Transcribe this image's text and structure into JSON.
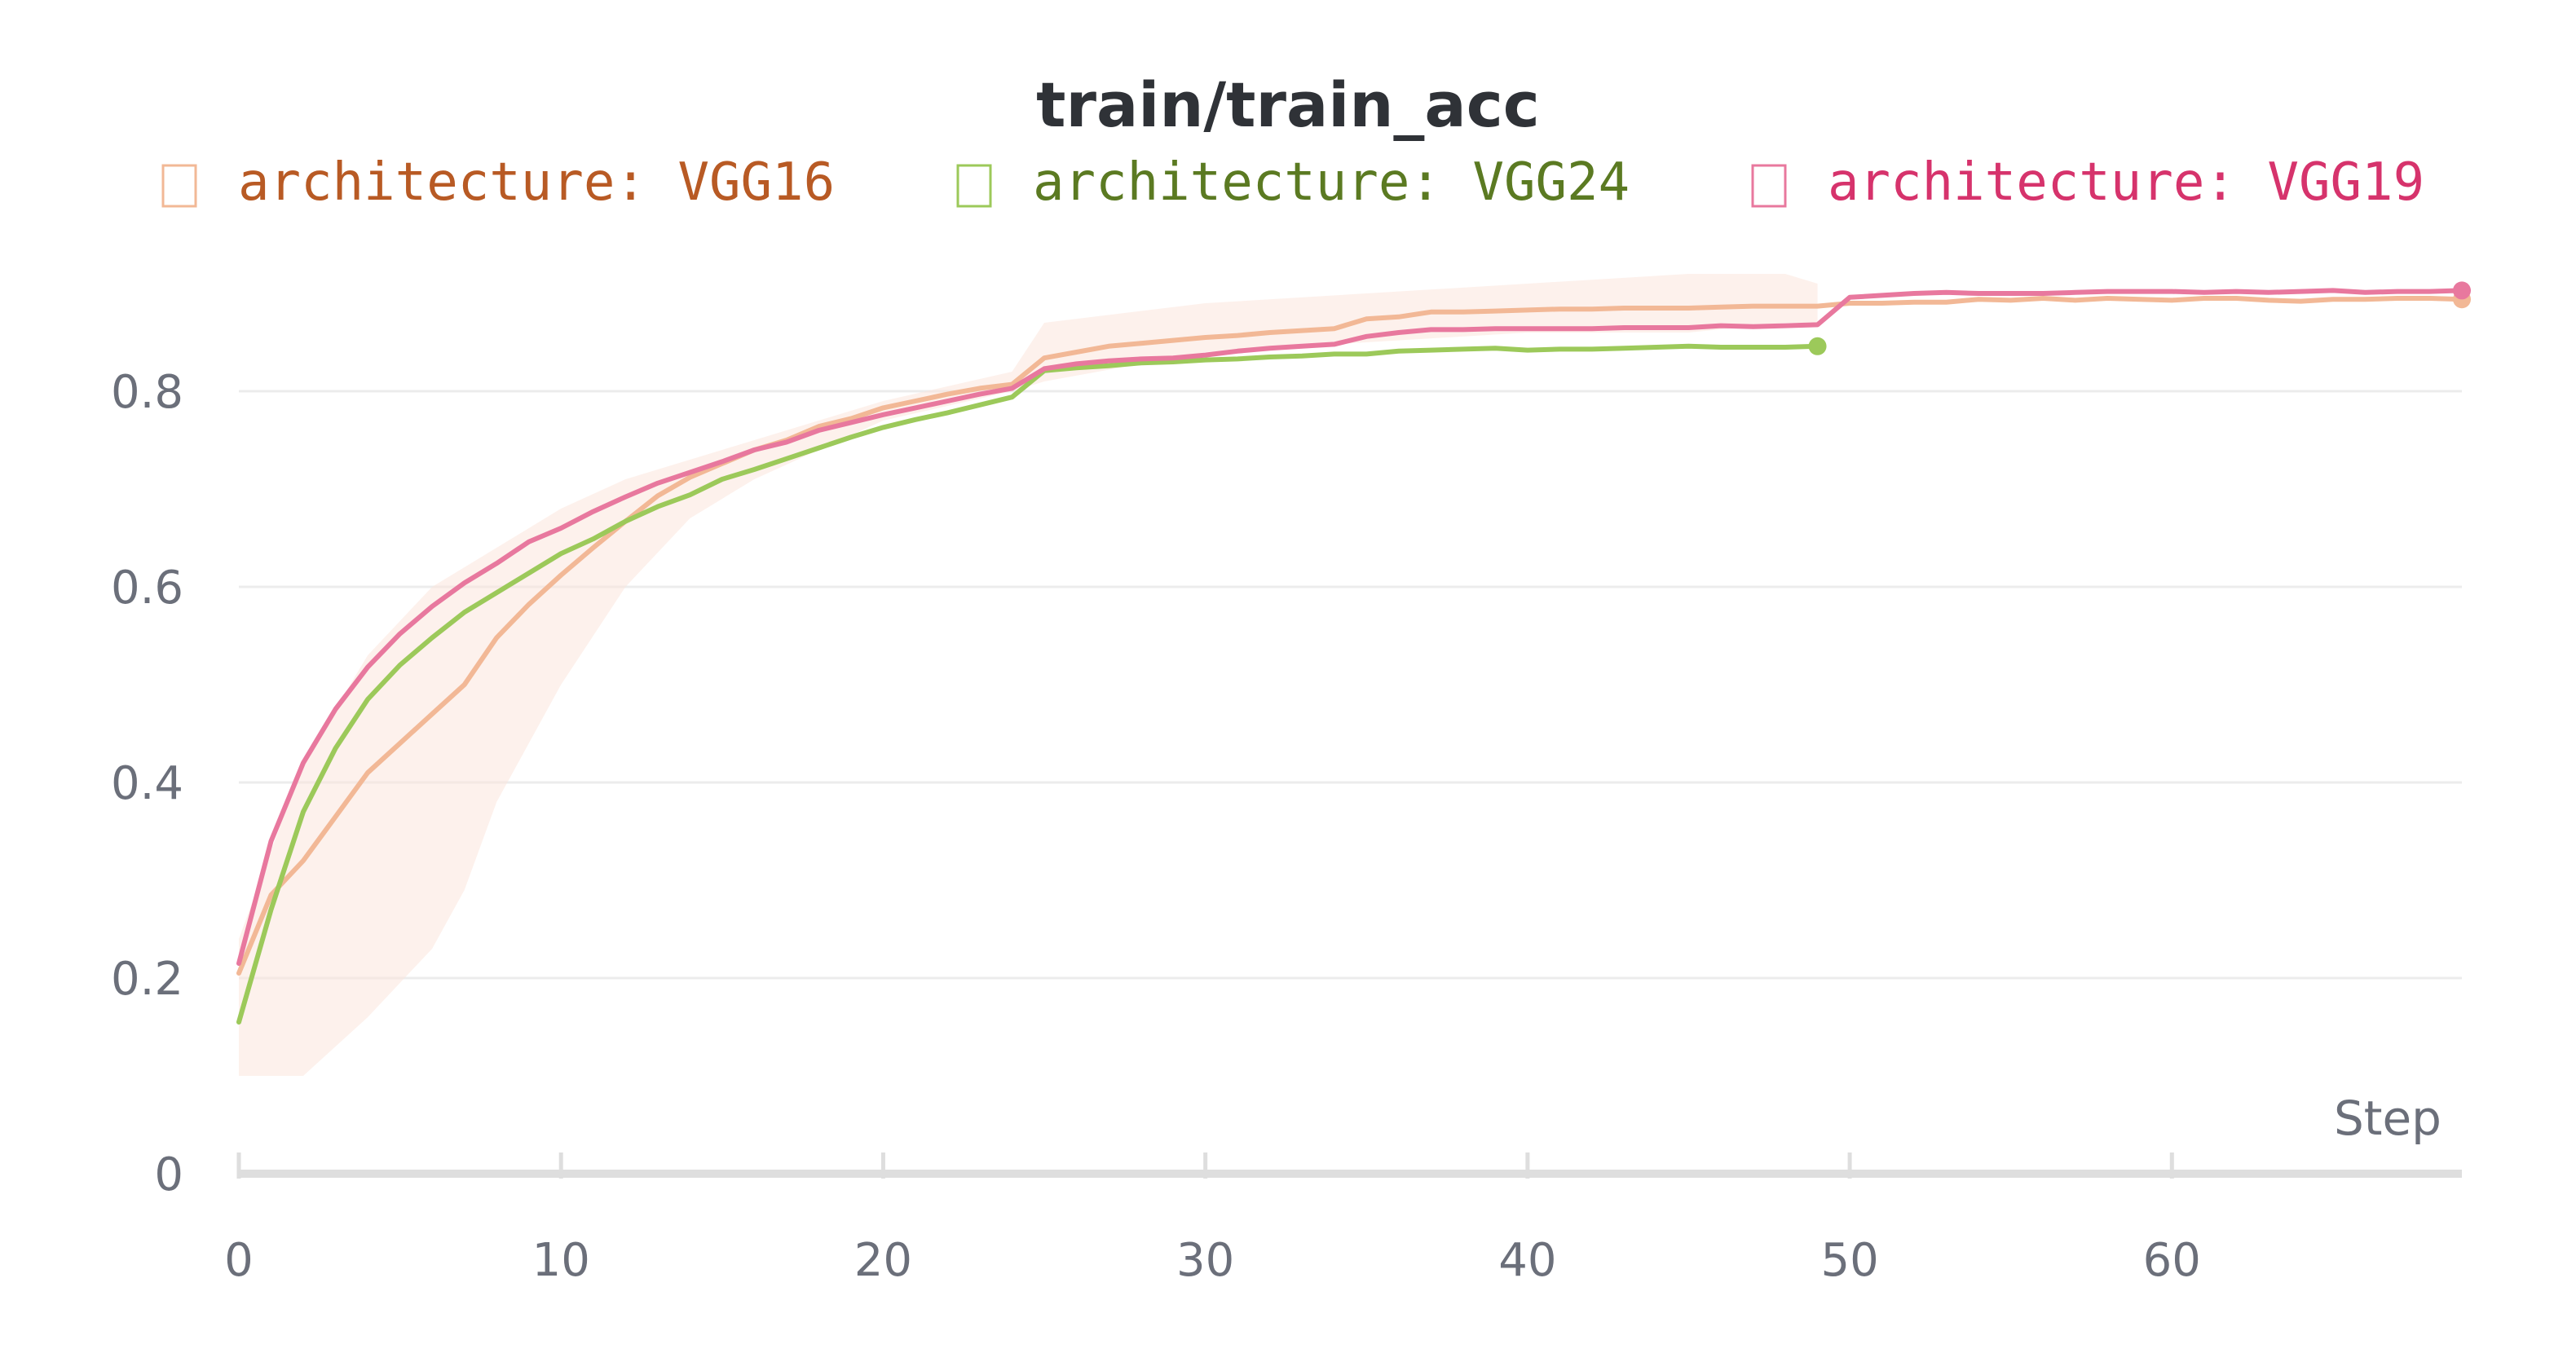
{
  "chart_data": {
    "type": "line",
    "title": "train/train_acc",
    "xlabel": "Step",
    "ylabel": "",
    "xlim": [
      0,
      69
    ],
    "ylim": [
      0,
      0.95
    ],
    "x_ticks": [
      0,
      10,
      20,
      30,
      40,
      50,
      60
    ],
    "x_tick_labels": [
      "0",
      "10",
      "20",
      "30",
      "40",
      "50",
      "60"
    ],
    "y_ticks": [
      0,
      0.2,
      0.4,
      0.6,
      0.8
    ],
    "y_tick_labels": [
      "0",
      "0.2",
      "0.4",
      "0.6",
      "0.8"
    ],
    "grid": true,
    "legend_position": "top",
    "band": {
      "series": "architecture: VGG16",
      "color": "#fbe6dc",
      "x": [
        0,
        2,
        4,
        6,
        7,
        8,
        10,
        12,
        14,
        16,
        20,
        24,
        25,
        30,
        40,
        45,
        48,
        49
      ],
      "lower": [
        0.1,
        0.1,
        0.16,
        0.23,
        0.29,
        0.38,
        0.5,
        0.6,
        0.67,
        0.71,
        0.77,
        0.8,
        0.81,
        0.84,
        0.86,
        0.86,
        0.87,
        0.87
      ],
      "upper": [
        0.24,
        0.42,
        0.53,
        0.6,
        0.62,
        0.64,
        0.68,
        0.71,
        0.73,
        0.75,
        0.79,
        0.82,
        0.87,
        0.89,
        0.91,
        0.92,
        0.92,
        0.91
      ]
    },
    "series": [
      {
        "name": "architecture: VGG16",
        "color": "#f2b896",
        "legend_color": "#b85a24",
        "x": [
          0,
          1,
          2,
          3,
          4,
          5,
          6,
          7,
          8,
          9,
          10,
          11,
          12,
          13,
          14,
          15,
          16,
          17,
          18,
          19,
          20,
          21,
          22,
          23,
          24,
          25,
          26,
          27,
          28,
          29,
          30,
          31,
          32,
          33,
          34,
          35,
          36,
          37,
          38,
          39,
          40,
          41,
          42,
          43,
          44,
          45,
          46,
          47,
          48,
          49,
          50,
          51,
          52,
          53,
          54,
          55,
          56,
          57,
          58,
          59,
          60,
          61,
          62,
          63,
          64,
          65,
          66,
          67,
          68,
          69
        ],
        "y": [
          0.205,
          0.285,
          0.32,
          0.365,
          0.41,
          0.44,
          0.47,
          0.5,
          0.548,
          0.582,
          0.612,
          0.64,
          0.667,
          0.693,
          0.712,
          0.726,
          0.74,
          0.75,
          0.764,
          0.772,
          0.783,
          0.79,
          0.797,
          0.803,
          0.807,
          0.834,
          0.84,
          0.846,
          0.849,
          0.852,
          0.855,
          0.857,
          0.86,
          0.862,
          0.864,
          0.874,
          0.876,
          0.881,
          0.881,
          0.882,
          0.883,
          0.884,
          0.884,
          0.885,
          0.885,
          0.885,
          0.886,
          0.887,
          0.887,
          0.887,
          0.89,
          0.89,
          0.891,
          0.891,
          0.894,
          0.893,
          0.895,
          0.893,
          0.895,
          0.894,
          0.893,
          0.895,
          0.895,
          0.893,
          0.892,
          0.894,
          0.894,
          0.895,
          0.895,
          0.894
        ]
      },
      {
        "name": "architecture: VGG24",
        "color": "#9cc95a",
        "legend_color": "#5b7a22",
        "x": [
          0,
          1,
          2,
          3,
          4,
          5,
          6,
          7,
          8,
          9,
          10,
          11,
          12,
          13,
          14,
          15,
          16,
          17,
          18,
          19,
          20,
          21,
          22,
          23,
          24,
          25,
          26,
          27,
          28,
          29,
          30,
          31,
          32,
          33,
          34,
          35,
          36,
          37,
          38,
          39,
          40,
          41,
          42,
          43,
          44,
          45,
          46,
          47,
          48,
          49
        ],
        "y": [
          0.155,
          0.27,
          0.37,
          0.435,
          0.485,
          0.52,
          0.548,
          0.574,
          0.594,
          0.614,
          0.634,
          0.649,
          0.667,
          0.682,
          0.694,
          0.71,
          0.72,
          0.731,
          0.742,
          0.753,
          0.763,
          0.771,
          0.778,
          0.786,
          0.794,
          0.821,
          0.824,
          0.826,
          0.829,
          0.83,
          0.832,
          0.833,
          0.835,
          0.836,
          0.838,
          0.838,
          0.841,
          0.842,
          0.843,
          0.844,
          0.842,
          0.843,
          0.843,
          0.844,
          0.845,
          0.846,
          0.845,
          0.845,
          0.845,
          0.846
        ]
      },
      {
        "name": "architecture: VGG19",
        "color": "#e8789e",
        "legend_color": "#d6336c",
        "x": [
          0,
          1,
          2,
          3,
          4,
          5,
          6,
          7,
          8,
          9,
          10,
          11,
          12,
          13,
          14,
          15,
          16,
          17,
          18,
          19,
          20,
          21,
          22,
          23,
          24,
          25,
          26,
          27,
          28,
          29,
          30,
          31,
          32,
          33,
          34,
          35,
          36,
          37,
          38,
          39,
          40,
          41,
          42,
          43,
          44,
          45,
          46,
          47,
          48,
          49,
          50,
          51,
          52,
          53,
          54,
          55,
          56,
          57,
          58,
          59,
          60,
          61,
          62,
          63,
          64,
          65,
          66,
          67,
          68,
          69
        ],
        "y": [
          0.215,
          0.34,
          0.42,
          0.475,
          0.518,
          0.552,
          0.58,
          0.604,
          0.624,
          0.646,
          0.66,
          0.677,
          0.692,
          0.706,
          0.717,
          0.728,
          0.74,
          0.748,
          0.76,
          0.768,
          0.776,
          0.783,
          0.79,
          0.797,
          0.803,
          0.823,
          0.828,
          0.831,
          0.833,
          0.834,
          0.837,
          0.841,
          0.844,
          0.846,
          0.848,
          0.856,
          0.86,
          0.863,
          0.863,
          0.864,
          0.864,
          0.864,
          0.864,
          0.865,
          0.865,
          0.865,
          0.867,
          0.866,
          0.867,
          0.868,
          0.896,
          0.898,
          0.9,
          0.901,
          0.9,
          0.9,
          0.9,
          0.901,
          0.902,
          0.902,
          0.902,
          0.901,
          0.902,
          0.901,
          0.902,
          0.903,
          0.901,
          0.902,
          0.902,
          0.903
        ]
      }
    ]
  }
}
